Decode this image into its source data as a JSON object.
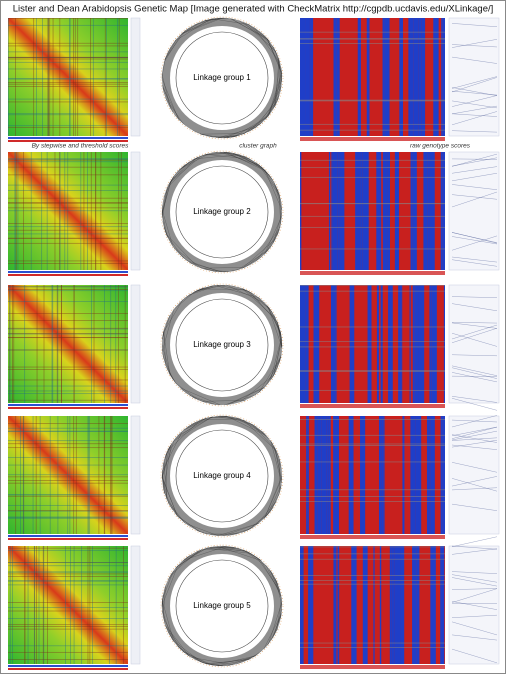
{
  "header": {
    "title": "Lister and Dean Arabidopsis Genetic Map [Image generated with CheckMatrix http://cgpdb.ucdavis.edu/XLinkage/]"
  },
  "annotations": {
    "left": "By stepwise and threshold scores",
    "middle": "cluster graph",
    "right": "raw genotype scores"
  },
  "panels": [
    {
      "label": "Linkage group 1"
    },
    {
      "label": "Linkage group 2"
    },
    {
      "label": "Linkage group 3"
    },
    {
      "label": "Linkage group 4"
    },
    {
      "label": "Linkage group 5"
    }
  ]
}
